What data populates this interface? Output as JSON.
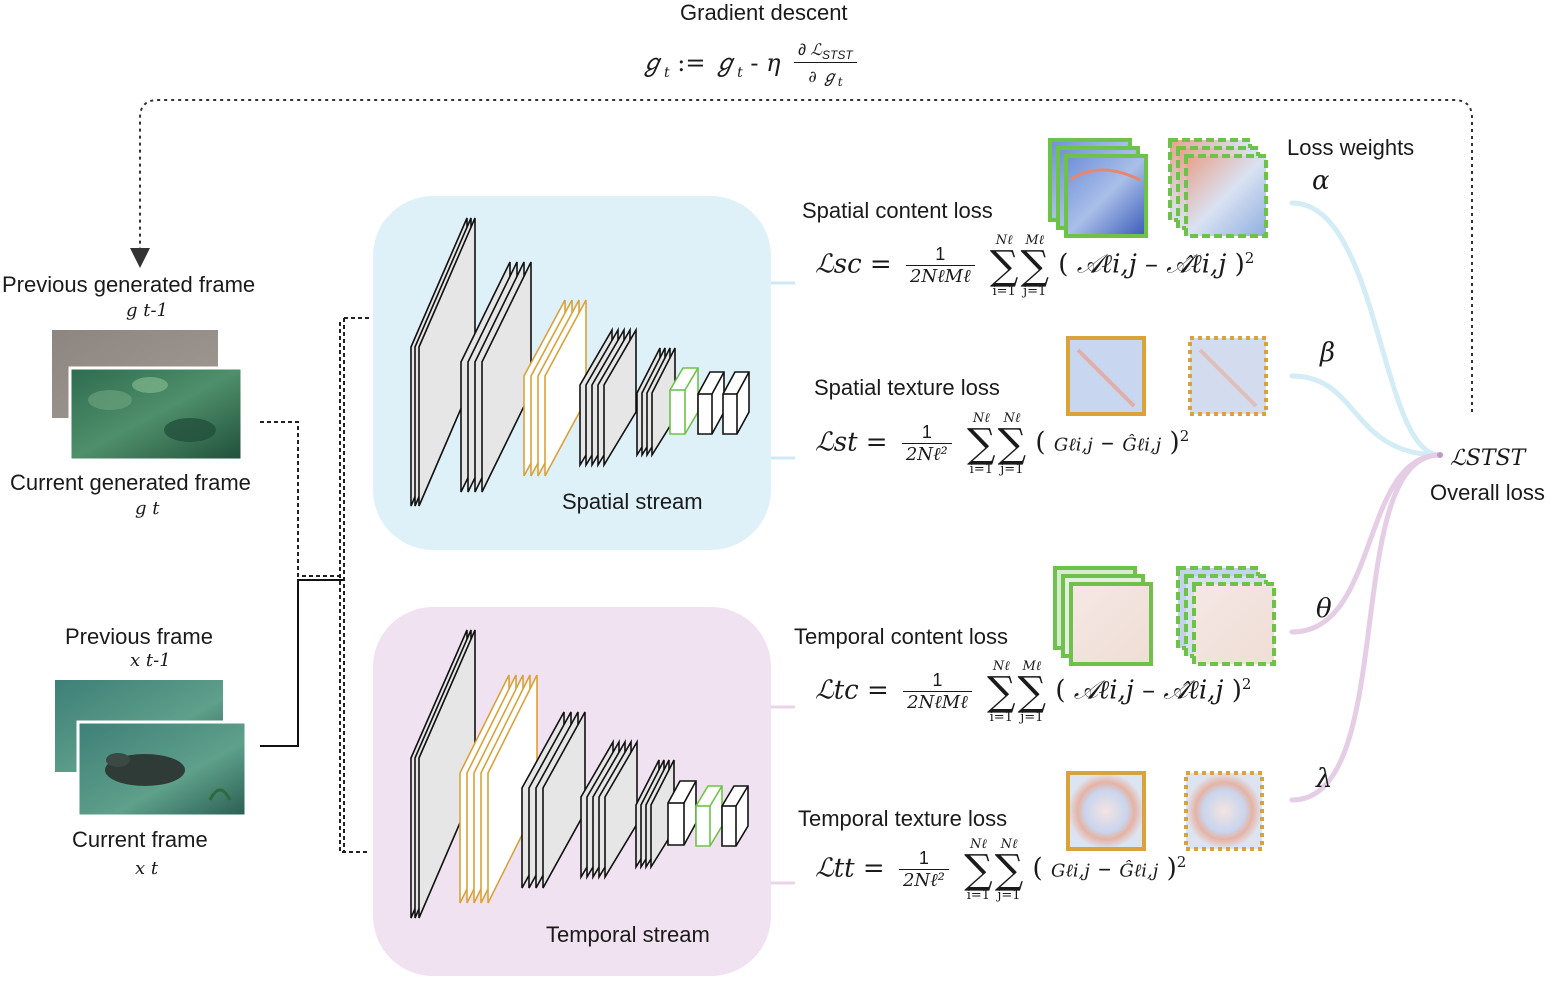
{
  "gradient": {
    "title": "Gradient descent",
    "formula": "g_t := g_t - η ∂ℒSTST / ∂ g_t"
  },
  "frames": {
    "prev_generated_label": "Previous generated frame",
    "prev_generated_sym": "g t-1",
    "curr_generated_label": "Current generated frame",
    "curr_generated_sym": "g t",
    "prev_frame_label": "Previous frame",
    "prev_frame_sym": "x t-1",
    "curr_frame_label": "Current frame",
    "curr_frame_sym": "x t"
  },
  "streams": {
    "spatial_label": "Spatial stream",
    "temporal_label": "Temporal stream",
    "spatial_color": "#dff1f8",
    "temporal_color": "#f0e2f0",
    "highlight_orange": "#e0a43a",
    "highlight_green": "#6ec24a"
  },
  "losses": {
    "spatial_content_title": "Spatial content loss",
    "spatial_content_lhs": "ℒsc",
    "spatial_texture_title": "Spatial texture loss",
    "spatial_texture_lhs": "ℒst",
    "temporal_content_title": "Temporal content loss",
    "temporal_content_lhs": "ℒtc",
    "temporal_texture_title": "Temporal texture loss",
    "temporal_texture_lhs": "ℒtt",
    "frac_one": "1",
    "frac_den_content": "2NℓMℓ",
    "frac_den_texture": "2Nℓ²",
    "sum_i_top": "Nℓ",
    "sum_j_top_content": "Mℓ",
    "sum_j_top_texture": "Nℓ",
    "sum_i_bot": "i=1",
    "sum_j_bot": "j=1",
    "content_term_a": "𝒜ℓi,j",
    "content_term_b": "𝒜̂ℓi,j",
    "texture_term_a": "Gℓi,j",
    "texture_term_b": "Ĝℓi,j"
  },
  "weights": {
    "title": "Loss weights",
    "alpha": "α",
    "beta": "β",
    "theta": "θ",
    "lambda": "λ"
  },
  "overall": {
    "symbol": "ℒSTST",
    "label": "Overall loss",
    "blue_line_color": "#d3ecf6",
    "purple_line_color": "#e6cde6"
  }
}
